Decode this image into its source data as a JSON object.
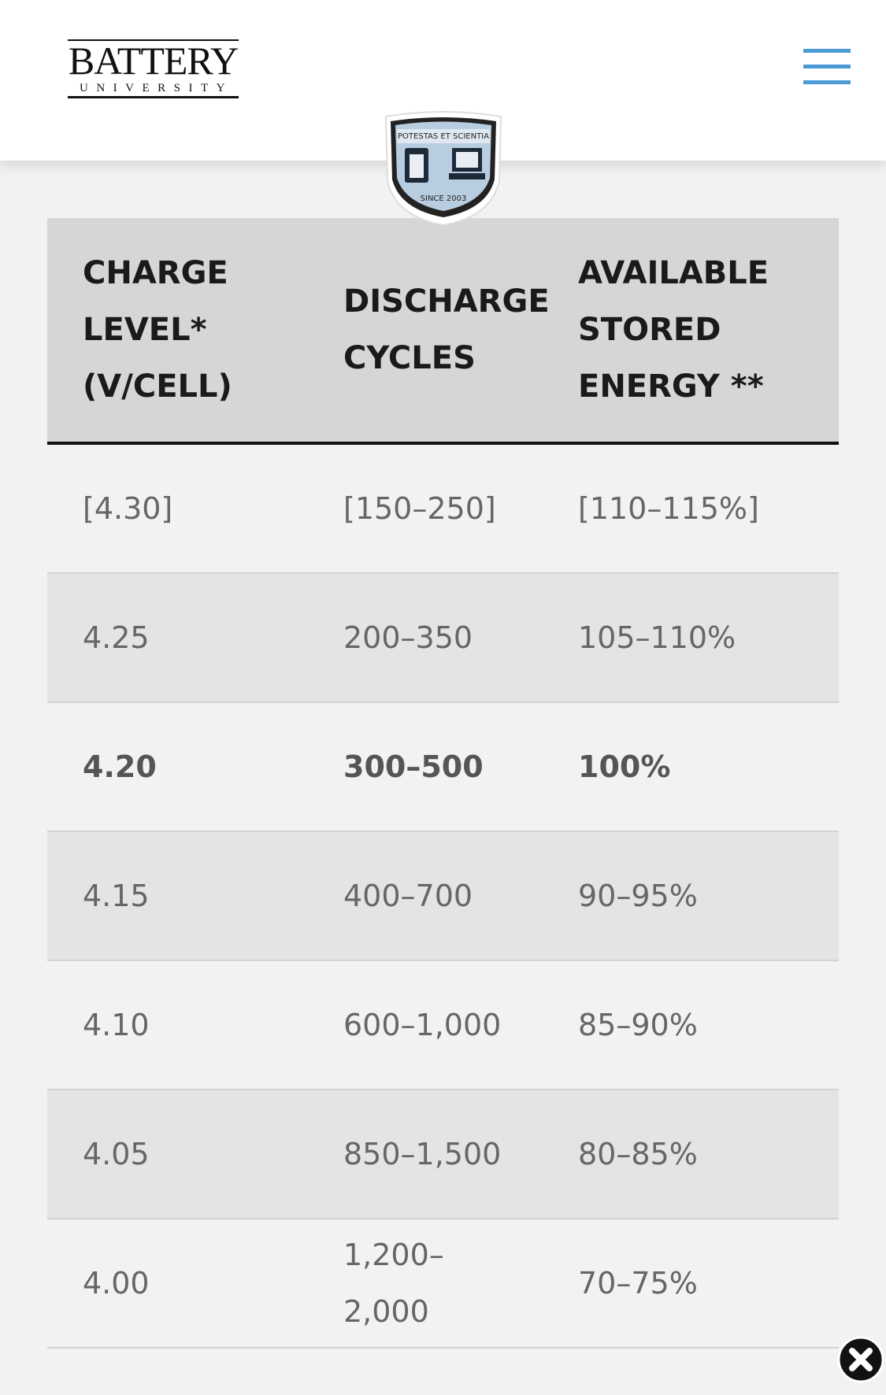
{
  "header": {
    "logo_title": "BATTERY",
    "logo_subtitle": "UNIVERSITY"
  },
  "badge": {
    "motto": "POTESTAS ET SCIENTIA",
    "since": "SINCE 2003"
  },
  "table": {
    "columns": [
      "CHARGE LEVEL* (V/CELL)",
      "DISCHARGE CYCLES",
      "AVAILABLE STORED ENERGY **"
    ],
    "rows": [
      [
        "[4.30]",
        "[150–250]",
        "[110–115%]"
      ],
      [
        "4.25",
        "200–350",
        "105–110%"
      ],
      [
        "4.20",
        "300–500",
        "100%"
      ],
      [
        "4.15",
        "400–700",
        "90–95%"
      ],
      [
        "4.10",
        "600–1,000",
        "85–90%"
      ],
      [
        "4.05",
        "850–1,500",
        "80–85%"
      ],
      [
        "4.00",
        "1,200–2,000",
        "70–75%"
      ]
    ]
  }
}
